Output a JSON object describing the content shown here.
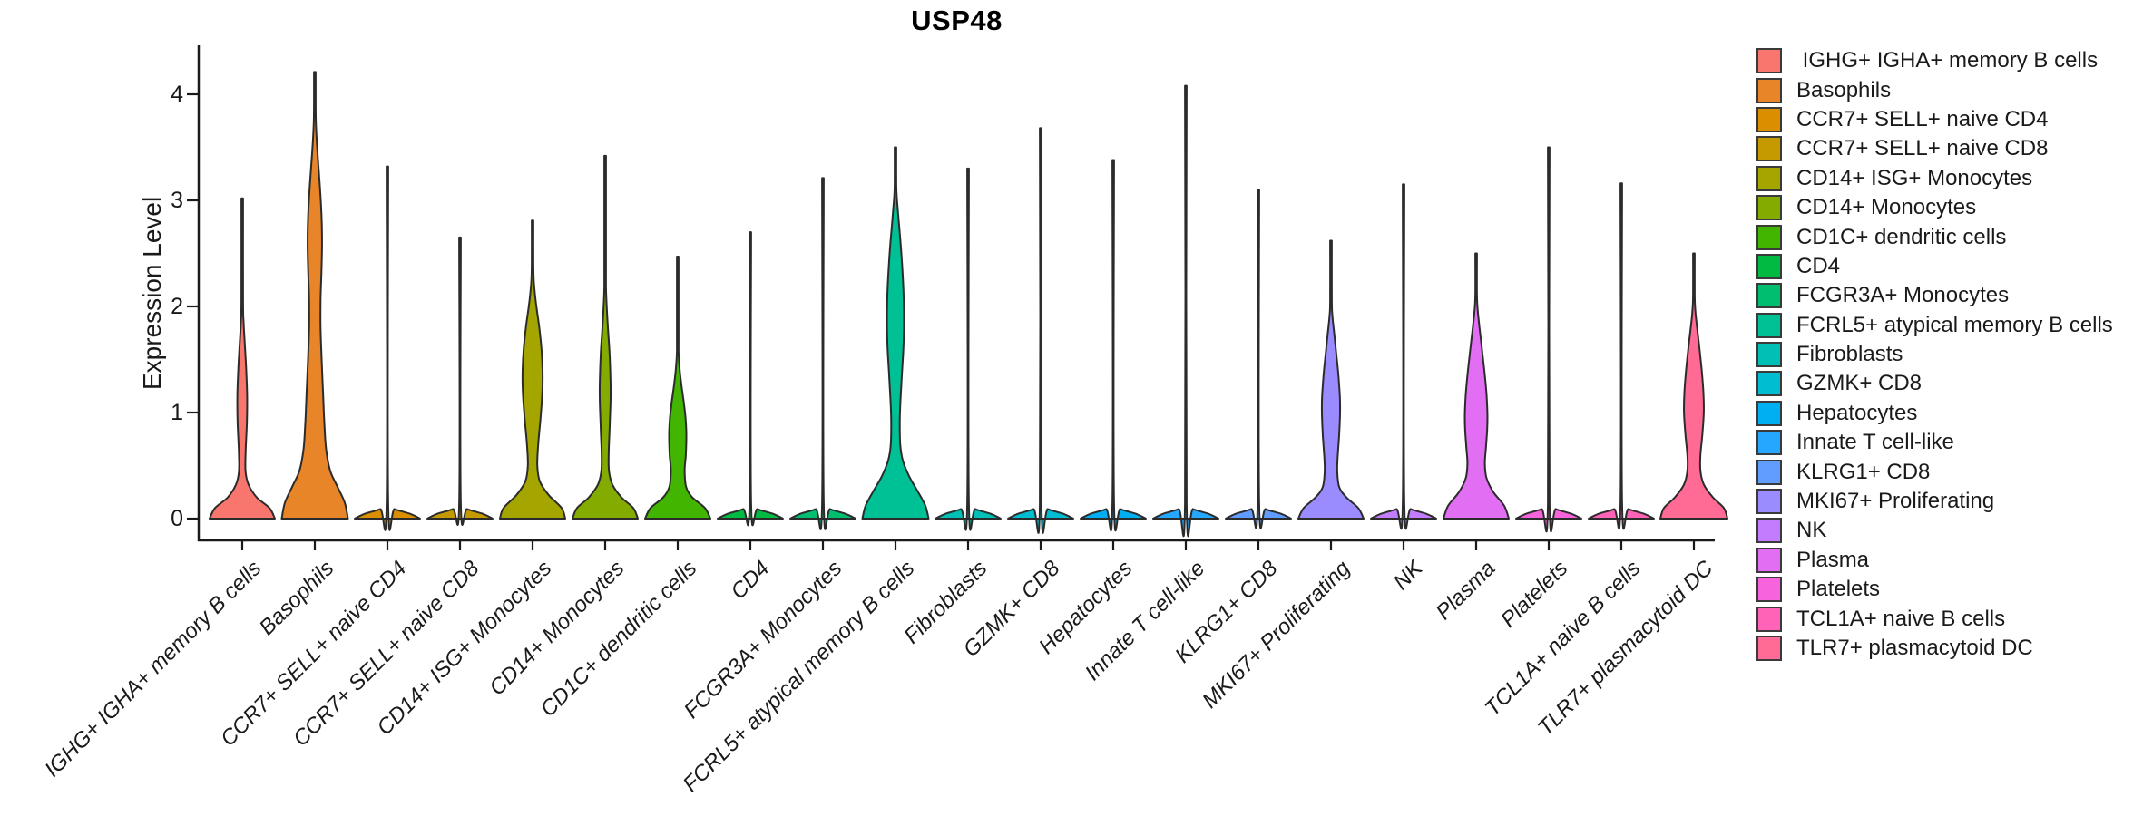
{
  "title": "USP48",
  "y_axis": {
    "label": "Expression Level",
    "tick_labels": [
      "0",
      "1",
      "2",
      "3",
      "4"
    ]
  },
  "legend": {
    "position": "right",
    "items": [
      {
        "label": " IGHG+ IGHA+ memory B cells",
        "color": "#F8766D"
      },
      {
        "label": "Basophils",
        "color": "#E98529"
      },
      {
        "label": "CCR7+ SELL+ naive CD4",
        "color": "#DA8F00"
      },
      {
        "label": "CCR7+ SELL+ naive CD8",
        "color": "#C49A00"
      },
      {
        "label": "CD14+ ISG+ Monocytes",
        "color": "#A5A500"
      },
      {
        "label": "CD14+ Monocytes",
        "color": "#83AB00"
      },
      {
        "label": "CD1C+ dendritic cells",
        "color": "#42B500"
      },
      {
        "label": "CD4",
        "color": "#00BA42"
      },
      {
        "label": "FCGR3A+ Monocytes",
        "color": "#00BE6F"
      },
      {
        "label": "FCRL5+ atypical memory B cells",
        "color": "#00C096"
      },
      {
        "label": "Fibroblasts",
        "color": "#00BFB4"
      },
      {
        "label": "GZMK+ CD8",
        "color": "#00BDD1"
      },
      {
        "label": "Hepatocytes",
        "color": "#00AEF2"
      },
      {
        "label": "Innate T cell-like",
        "color": "#25A6FF"
      },
      {
        "label": "KLRG1+ CD8",
        "color": "#619CFF"
      },
      {
        "label": "MKI67+ Proliferating",
        "color": "#9A8BFF"
      },
      {
        "label": "NK",
        "color": "#C47CFF"
      },
      {
        "label": "Plasma",
        "color": "#E26EF3"
      },
      {
        "label": "Platelets",
        "color": "#F763DC"
      },
      {
        "label": "TCL1A+ naive B cells",
        "color": "#FF63B7"
      },
      {
        "label": "TLR7+ plasmacytoid DC",
        "color": "#FF6B94"
      }
    ]
  },
  "chart_data": {
    "type": "violin",
    "title": "USP48",
    "xlabel": "",
    "ylabel": "Expression Level",
    "ylim": [
      0,
      4.46
    ],
    "yticks": [
      0,
      1,
      2,
      3,
      4
    ],
    "grid": false,
    "legend_position": "right",
    "x_label_angle_deg": 45,
    "categories": [
      "IGHG+ IGHA+ memory B cells",
      "Basophils",
      "CCR7+ SELL+ naive CD4",
      "CCR7+ SELL+ naive CD8",
      "CD14+ ISG+ Monocytes",
      "CD14+ Monocytes",
      "CD1C+ dendritic cells",
      "CD4",
      "FCGR3A+ Monocytes",
      "FCRL5+ atypical memory B cells",
      "Fibroblasts",
      "GZMK+ CD8",
      "Hepatocytes",
      "Innate T cell-like",
      "KLRG1+ CD8",
      "MKI67+ Proliferating",
      "NK",
      "Plasma",
      "Platelets",
      "TCL1A+ naive B cells",
      "TLR7+ plasmacytoid DC"
    ],
    "series": [
      {
        "name": "IGHG+ IGHA+ memory B cells",
        "color": "#F8766D",
        "max_expression": 3.02,
        "profile": [
          [
            0,
            36
          ],
          [
            0.1,
            30
          ],
          [
            0.2,
            16
          ],
          [
            0.32,
            7
          ],
          [
            0.45,
            3.6
          ],
          [
            0.65,
            3.8
          ],
          [
            0.9,
            5.1
          ],
          [
            1.15,
            5.4
          ],
          [
            1.4,
            4.4
          ],
          [
            1.65,
            2.8
          ],
          [
            1.85,
            1.5
          ],
          [
            2.05,
            0.9
          ],
          [
            3.02,
            0.9
          ]
        ]
      },
      {
        "name": "Basophils",
        "color": "#E98529",
        "max_expression": 4.21,
        "profile": [
          [
            0,
            36.5
          ],
          [
            0.15,
            33
          ],
          [
            0.3,
            25
          ],
          [
            0.45,
            17
          ],
          [
            0.65,
            12.5
          ],
          [
            0.9,
            10.5
          ],
          [
            1.2,
            9
          ],
          [
            1.5,
            7.5
          ],
          [
            1.8,
            6.3
          ],
          [
            2.05,
            6.3
          ],
          [
            2.3,
            7.2
          ],
          [
            2.55,
            7.9
          ],
          [
            2.8,
            7.6
          ],
          [
            3.05,
            6.2
          ],
          [
            3.3,
            4.2
          ],
          [
            3.55,
            2.2
          ],
          [
            3.75,
            1.1
          ],
          [
            3.95,
            0.9
          ],
          [
            4.21,
            0.9
          ]
        ]
      },
      {
        "name": "CCR7+ SELL+ naive CD4",
        "color": "#DA8F00",
        "max_expression": 3.32,
        "profile": [
          [
            0,
            36
          ],
          [
            0.045,
            25
          ],
          [
            0.09,
            8
          ],
          [
            0.14,
            0.9
          ],
          [
            3.32,
            0.9
          ]
        ]
      },
      {
        "name": "CCR7+ SELL+ naive CD8",
        "color": "#C49A00",
        "max_expression": 2.65,
        "profile": [
          [
            0,
            36
          ],
          [
            0.045,
            25
          ],
          [
            0.09,
            8
          ],
          [
            0.14,
            0.9
          ],
          [
            2.65,
            0.9
          ]
        ]
      },
      {
        "name": "CD14+ ISG+ Monocytes",
        "color": "#A5A500",
        "max_expression": 2.81,
        "profile": [
          [
            0,
            36
          ],
          [
            0.1,
            32
          ],
          [
            0.22,
            18
          ],
          [
            0.35,
            8
          ],
          [
            0.5,
            5.2
          ],
          [
            0.7,
            6.2
          ],
          [
            0.95,
            8.8
          ],
          [
            1.2,
            10.8
          ],
          [
            1.4,
            11
          ],
          [
            1.6,
            9.8
          ],
          [
            1.8,
            7.4
          ],
          [
            1.95,
            5
          ],
          [
            2.1,
            2.8
          ],
          [
            2.25,
            1.3
          ],
          [
            2.4,
            0.9
          ],
          [
            2.81,
            0.9
          ]
        ]
      },
      {
        "name": "CD14+ Monocytes",
        "color": "#83AB00",
        "max_expression": 3.42,
        "profile": [
          [
            0,
            36
          ],
          [
            0.1,
            31
          ],
          [
            0.2,
            18
          ],
          [
            0.32,
            8
          ],
          [
            0.45,
            4.2
          ],
          [
            0.62,
            3.9
          ],
          [
            0.85,
            4.9
          ],
          [
            1.1,
            5.9
          ],
          [
            1.3,
            5.9
          ],
          [
            1.55,
            4.9
          ],
          [
            1.75,
            3.4
          ],
          [
            1.95,
            2
          ],
          [
            2.15,
            1
          ],
          [
            2.35,
            0.9
          ],
          [
            3.42,
            0.9
          ]
        ]
      },
      {
        "name": "CD1C+ dendritic cells",
        "color": "#42B500",
        "max_expression": 2.47,
        "profile": [
          [
            0,
            36
          ],
          [
            0.1,
            30
          ],
          [
            0.2,
            16
          ],
          [
            0.3,
            9.2
          ],
          [
            0.45,
            7.6
          ],
          [
            0.6,
            8.9
          ],
          [
            0.78,
            9.5
          ],
          [
            0.95,
            8.6
          ],
          [
            1.1,
            6.6
          ],
          [
            1.25,
            4.2
          ],
          [
            1.4,
            2.2
          ],
          [
            1.55,
            1
          ],
          [
            1.7,
            0.9
          ],
          [
            2.47,
            0.9
          ]
        ]
      },
      {
        "name": "CD4",
        "color": "#00BA42",
        "max_expression": 2.7,
        "profile": [
          [
            0,
            36
          ],
          [
            0.045,
            25
          ],
          [
            0.09,
            8
          ],
          [
            0.14,
            0.9
          ],
          [
            2.7,
            0.9
          ]
        ]
      },
      {
        "name": "FCGR3A+ Monocytes",
        "color": "#00BE6F",
        "max_expression": 3.21,
        "profile": [
          [
            0,
            36
          ],
          [
            0.045,
            25
          ],
          [
            0.09,
            8
          ],
          [
            0.14,
            0.9
          ],
          [
            3.21,
            0.9
          ]
        ]
      },
      {
        "name": "FCRL5+ atypical memory B cells",
        "color": "#00C096",
        "max_expression": 3.5,
        "profile": [
          [
            0,
            36.5
          ],
          [
            0.12,
            33
          ],
          [
            0.25,
            25
          ],
          [
            0.4,
            15
          ],
          [
            0.55,
            8
          ],
          [
            0.7,
            5.2
          ],
          [
            0.9,
            4.7
          ],
          [
            1.1,
            5.4
          ],
          [
            1.35,
            7
          ],
          [
            1.6,
            8.7
          ],
          [
            1.85,
            9.4
          ],
          [
            2.1,
            9
          ],
          [
            2.35,
            7.6
          ],
          [
            2.6,
            5.6
          ],
          [
            2.8,
            3.6
          ],
          [
            3.0,
            1.7
          ],
          [
            3.15,
            0.9
          ],
          [
            3.5,
            0.9
          ]
        ]
      },
      {
        "name": "Fibroblasts",
        "color": "#00BFB4",
        "max_expression": 3.3,
        "profile": [
          [
            0,
            36
          ],
          [
            0.045,
            25
          ],
          [
            0.09,
            8
          ],
          [
            0.14,
            0.9
          ],
          [
            3.3,
            0.9
          ]
        ]
      },
      {
        "name": "GZMK+ CD8",
        "color": "#00BDD1",
        "max_expression": 3.68,
        "profile": [
          [
            0,
            36
          ],
          [
            0.045,
            25
          ],
          [
            0.09,
            8
          ],
          [
            0.14,
            0.9
          ],
          [
            3.68,
            0.9
          ]
        ]
      },
      {
        "name": "Hepatocytes",
        "color": "#00AEF2",
        "max_expression": 3.38,
        "profile": [
          [
            0,
            36
          ],
          [
            0.045,
            25
          ],
          [
            0.09,
            8
          ],
          [
            0.14,
            0.9
          ],
          [
            3.38,
            0.9
          ]
        ]
      },
      {
        "name": "Innate T cell-like",
        "color": "#25A6FF",
        "max_expression": 4.08,
        "profile": [
          [
            0,
            36
          ],
          [
            0.045,
            25
          ],
          [
            0.09,
            8
          ],
          [
            0.14,
            0.9
          ],
          [
            4.08,
            0.9
          ]
        ]
      },
      {
        "name": "KLRG1+ CD8",
        "color": "#619CFF",
        "max_expression": 3.1,
        "profile": [
          [
            0,
            36
          ],
          [
            0.045,
            25
          ],
          [
            0.09,
            8
          ],
          [
            0.14,
            0.9
          ],
          [
            3.1,
            0.9
          ]
        ]
      },
      {
        "name": "MKI67+ Proliferating",
        "color": "#9A8BFF",
        "max_expression": 2.62,
        "profile": [
          [
            0,
            36
          ],
          [
            0.1,
            30
          ],
          [
            0.2,
            17
          ],
          [
            0.3,
            9
          ],
          [
            0.45,
            6.9
          ],
          [
            0.6,
            7.5
          ],
          [
            0.8,
            9.1
          ],
          [
            1.0,
            10
          ],
          [
            1.15,
            9.8
          ],
          [
            1.35,
            8.2
          ],
          [
            1.55,
            5.9
          ],
          [
            1.75,
            3.5
          ],
          [
            1.9,
            1.7
          ],
          [
            2.05,
            0.9
          ],
          [
            2.62,
            0.9
          ]
        ]
      },
      {
        "name": "NK",
        "color": "#C47CFF",
        "max_expression": 3.15,
        "profile": [
          [
            0,
            36
          ],
          [
            0.045,
            25
          ],
          [
            0.09,
            8
          ],
          [
            0.14,
            0.9
          ],
          [
            3.15,
            0.9
          ]
        ]
      },
      {
        "name": "Plasma",
        "color": "#E26EF3",
        "max_expression": 2.5,
        "profile": [
          [
            0,
            36
          ],
          [
            0.12,
            31
          ],
          [
            0.25,
            19
          ],
          [
            0.38,
            11.5
          ],
          [
            0.52,
            9.6
          ],
          [
            0.68,
            10.9
          ],
          [
            0.85,
            12.2
          ],
          [
            1.0,
            12.4
          ],
          [
            1.2,
            11.2
          ],
          [
            1.4,
            9
          ],
          [
            1.6,
            6.4
          ],
          [
            1.8,
            3.7
          ],
          [
            1.95,
            1.9
          ],
          [
            2.1,
            0.9
          ],
          [
            2.5,
            0.9
          ]
        ]
      },
      {
        "name": "Platelets",
        "color": "#F763DC",
        "max_expression": 3.5,
        "profile": [
          [
            0,
            36
          ],
          [
            0.045,
            25
          ],
          [
            0.09,
            8
          ],
          [
            0.14,
            0.9
          ],
          [
            3.5,
            0.9
          ]
        ]
      },
      {
        "name": "TCL1A+ naive B cells",
        "color": "#FF63B7",
        "max_expression": 3.16,
        "profile": [
          [
            0,
            36
          ],
          [
            0.045,
            25
          ],
          [
            0.09,
            8
          ],
          [
            0.14,
            0.9
          ],
          [
            3.16,
            0.9
          ]
        ]
      },
      {
        "name": "TLR7+ plasmacytoid DC",
        "color": "#FF6B94",
        "max_expression": 2.5,
        "profile": [
          [
            0,
            37
          ],
          [
            0.1,
            33
          ],
          [
            0.2,
            21
          ],
          [
            0.32,
            11
          ],
          [
            0.45,
            7.2
          ],
          [
            0.6,
            7.2
          ],
          [
            0.8,
            9.4
          ],
          [
            1.0,
            10.9
          ],
          [
            1.2,
            10.4
          ],
          [
            1.4,
            8.6
          ],
          [
            1.6,
            6.2
          ],
          [
            1.8,
            3.5
          ],
          [
            1.95,
            1.7
          ],
          [
            2.1,
            0.9
          ],
          [
            2.5,
            0.9
          ]
        ]
      }
    ]
  }
}
